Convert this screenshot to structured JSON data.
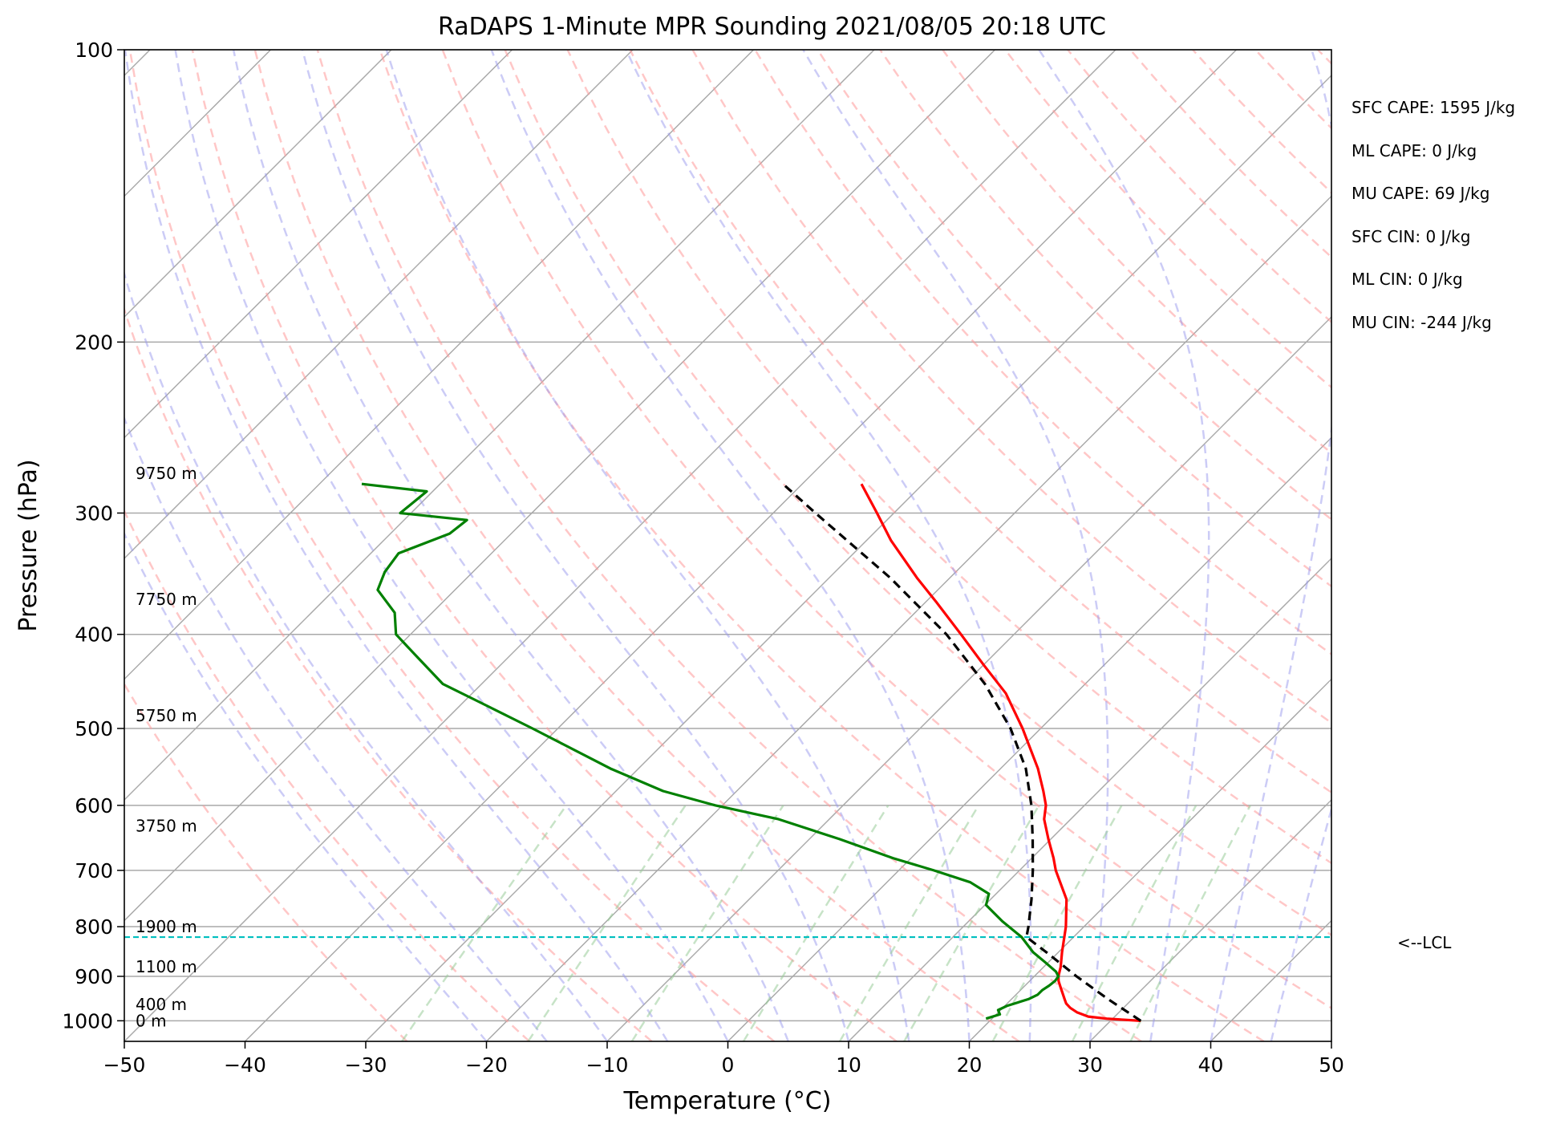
{
  "chart_data": {
    "type": "line",
    "subtype": "skew-T log-P sounding",
    "title": "RaDAPS 1-Minute MPR Sounding 2021/08/05 20:18 UTC",
    "xlabel": "Temperature (°C)",
    "ylabel": "Pressure (hPa)",
    "xlim": [
      -50,
      50
    ],
    "ylim": [
      1050,
      100
    ],
    "y_scale": "log",
    "x_ticks": [
      "−50",
      "−40",
      "−30",
      "−20",
      "−10",
      "0",
      "10",
      "20",
      "30",
      "40",
      "50"
    ],
    "y_ticks": [
      100,
      200,
      300,
      400,
      500,
      600,
      700,
      800,
      900,
      1000
    ],
    "grid": "horizontal isobars",
    "series": [
      {
        "color": "#ff0000",
        "pressure": [
          1000,
          995,
          990,
          980,
          970,
          960,
          950,
          940,
          930,
          920,
          910,
          900,
          880,
          850,
          800,
          750,
          700,
          680,
          650,
          620,
          600,
          580,
          550,
          500,
          460,
          430,
          400,
          370,
          350,
          320,
          300,
          280
        ],
        "values": [
          32.5,
          29.5,
          27.8,
          26.5,
          25.6,
          24.9,
          24.4,
          23.9,
          23.4,
          22.9,
          22.4,
          22.0,
          21.4,
          20.3,
          18.5,
          16.3,
          13.0,
          11.8,
          9.8,
          7.8,
          6.8,
          5.4,
          3.1,
          -1.5,
          -5.8,
          -10.0,
          -14.4,
          -19.2,
          -22.7,
          -28.0,
          -31.4,
          -35.1
        ]
      },
      {
        "color": "#008000",
        "pressure": [
          995,
          985,
          975,
          965,
          950,
          940,
          930,
          920,
          910,
          900,
          890,
          870,
          850,
          820,
          790,
          760,
          740,
          720,
          700,
          680,
          650,
          620,
          600,
          580,
          550,
          500,
          470,
          450,
          420,
          400,
          380,
          360,
          345,
          330,
          315,
          305,
          300,
          285,
          280
        ],
        "values": [
          19.5,
          20.3,
          19.8,
          20.2,
          21.4,
          21.8,
          21.8,
          22.0,
          22.1,
          22.0,
          21.4,
          19.7,
          17.9,
          15.7,
          12.8,
          10.1,
          9.4,
          6.9,
          2.9,
          -1.5,
          -7.5,
          -14.2,
          -20.6,
          -26.1,
          -32.3,
          -42.1,
          -48.6,
          -53.2,
          -57.9,
          -61.2,
          -63.1,
          -66.4,
          -67.3,
          -67.7,
          -65.1,
          -64.8,
          -70.9,
          -70.5,
          -76.5
        ]
      },
      {
        "color": "#000000",
        "pressure": [
          1000,
          950,
          900,
          850,
          820,
          800,
          750,
          700,
          650,
          600,
          550,
          500,
          450,
          400,
          350,
          300,
          280
        ],
        "values": [
          32.5,
          28.0,
          23.5,
          19.0,
          16.1,
          15.4,
          13.4,
          11.1,
          8.5,
          5.6,
          2.1,
          -2.5,
          -8.3,
          -15.6,
          -24.9,
          -36.5,
          -41.6
        ]
      }
    ],
    "lcl": {
      "pressure": 820,
      "label": "<--LCL",
      "color": "#00bfbf"
    },
    "height_labels": [
      {
        "label": "0 m",
        "pressure": 1000
      },
      {
        "label": "400 m",
        "pressure": 962
      },
      {
        "label": "1100 m",
        "pressure": 880
      },
      {
        "label": "1900 m",
        "pressure": 800
      },
      {
        "label": "3750 m",
        "pressure": 630
      },
      {
        "label": "5750 m",
        "pressure": 485
      },
      {
        "label": "7750 m",
        "pressure": 368
      },
      {
        "label": "9750 m",
        "pressure": 273
      }
    ],
    "background_lines": {
      "isotherms_color": "#a9a9a9",
      "dry_adiabats_color": "#ff9999",
      "moist_adiabats_color": "#9999ee",
      "mixing_ratio_color": "#99cc99"
    }
  },
  "stats": [
    "SFC CAPE: 1595 J/kg",
    "ML CAPE: 0 J/kg",
    "MU CAPE: 69 J/kg",
    "SFC CIN: 0 J/kg",
    "ML CIN: 0 J/kg",
    "MU CIN: -244 J/kg"
  ]
}
